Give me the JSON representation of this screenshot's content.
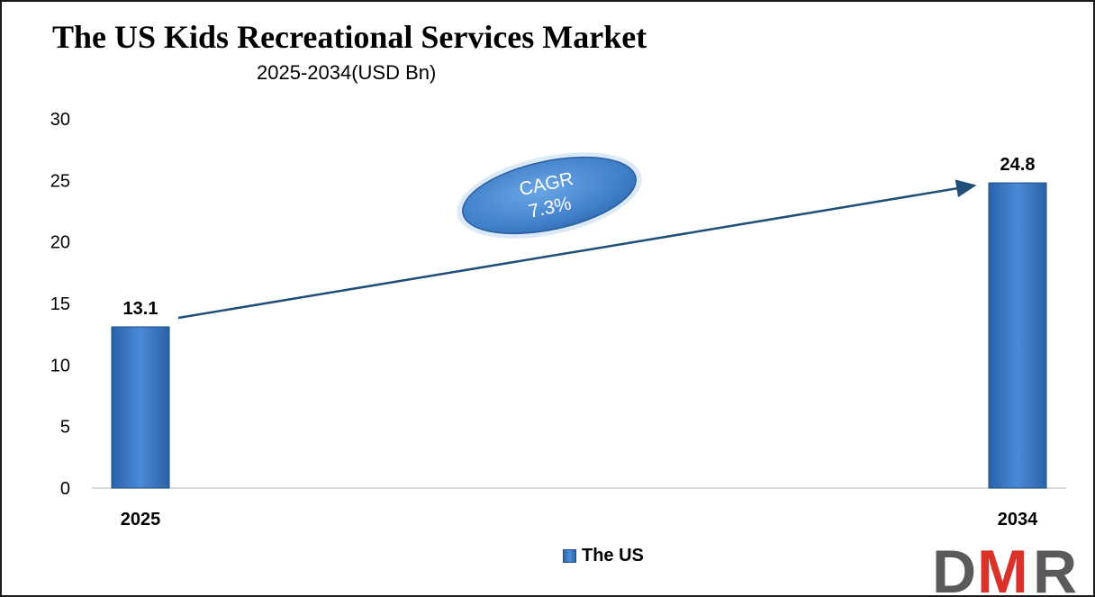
{
  "chart_data": {
    "type": "bar",
    "title": "The US Kids Recreational Services Market",
    "subtitle": "2025-2034(USD Bn)",
    "categories": [
      "2025",
      "2034"
    ],
    "series": [
      {
        "name": "The US",
        "values": [
          13.1,
          24.8
        ],
        "color": "#3a78c2"
      }
    ],
    "data_labels": [
      "13.1",
      "24.8"
    ],
    "y_ticks": [
      0,
      5,
      10,
      15,
      20,
      25,
      30
    ],
    "ylim": [
      0,
      30
    ],
    "grid": false,
    "legend_position": "bottom",
    "annotation": {
      "line1": "CAGR",
      "line2": "7.3%"
    }
  },
  "logo": {
    "text": "DMR",
    "colors": [
      "#5a5a5a",
      "#d9322b",
      "#5a5a5a"
    ]
  }
}
